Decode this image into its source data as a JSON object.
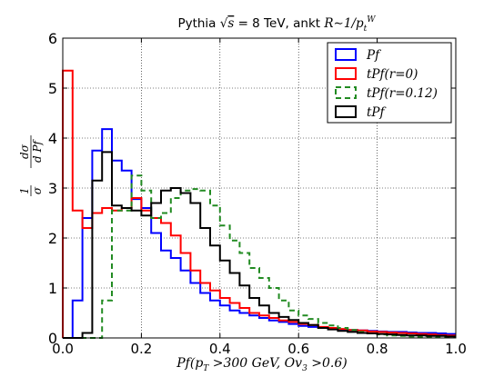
{
  "chart_data": {
    "type": "line",
    "title": "Pythia √s = 8 TeV, ankt R∼1/p_t^W",
    "title_parts": {
      "prefix": "Pythia ",
      "sqrt": "√",
      "s": "s",
      "energy": " = 8 TeV, ankt ",
      "R": "R",
      "approx": "∼1/",
      "p": "p",
      "sub_t": "t",
      "sup_W": "W"
    },
    "xlabel": "Pf(p_T > 300 GeV, Ov_3 > 0.6)",
    "xlabel_parts": {
      "head": "Pf(p",
      "sub_T": "T",
      "mid": " >300 GeV, Ov",
      "sub_3": "3",
      "tail": " >0.6)"
    },
    "ylabel": "1/σ dσ/d Pf",
    "ylabel_parts": {
      "one": "1",
      "sigma": "σ",
      "dsigma": "dσ",
      "dpf": "d Pf"
    },
    "xlim": [
      0.0,
      1.0
    ],
    "ylim": [
      0,
      6
    ],
    "x_ticks": [
      "0.0",
      "0.2",
      "0.4",
      "0.6",
      "0.8",
      "1.0"
    ],
    "y_ticks": [
      "0",
      "1",
      "2",
      "3",
      "4",
      "5",
      "6"
    ],
    "grid": true,
    "legend_position": "top-right",
    "bin_edges": [
      0.0,
      0.025,
      0.05,
      0.075,
      0.1,
      0.125,
      0.15,
      0.175,
      0.2,
      0.225,
      0.25,
      0.275,
      0.3,
      0.325,
      0.35,
      0.375,
      0.4,
      0.425,
      0.45,
      0.475,
      0.5,
      0.525,
      0.55,
      0.575,
      0.6,
      0.625,
      0.65,
      0.675,
      0.7,
      0.725,
      0.75,
      0.775,
      0.8,
      0.825,
      0.85,
      0.875,
      0.9,
      0.925,
      0.95,
      0.975,
      1.0
    ],
    "series": [
      {
        "name": "Pf",
        "color": "#0000ff",
        "dashed": false,
        "values": [
          0.0,
          0.75,
          2.4,
          3.75,
          4.18,
          3.55,
          3.35,
          2.78,
          2.6,
          2.1,
          1.75,
          1.6,
          1.35,
          1.1,
          0.9,
          0.75,
          0.65,
          0.55,
          0.5,
          0.45,
          0.4,
          0.35,
          0.32,
          0.28,
          0.24,
          0.22,
          0.2,
          0.18,
          0.17,
          0.16,
          0.15,
          0.14,
          0.13,
          0.12,
          0.12,
          0.11,
          0.1,
          0.1,
          0.09,
          0.08
        ]
      },
      {
        "name": "tPf(r=0)",
        "color": "#ff0000",
        "dashed": false,
        "values": [
          5.35,
          2.55,
          2.2,
          2.5,
          2.6,
          2.55,
          2.6,
          2.8,
          2.55,
          2.4,
          2.3,
          2.05,
          1.7,
          1.35,
          1.1,
          0.95,
          0.8,
          0.7,
          0.6,
          0.5,
          0.45,
          0.4,
          0.35,
          0.32,
          0.28,
          0.26,
          0.22,
          0.2,
          0.18,
          0.16,
          0.15,
          0.13,
          0.12,
          0.11,
          0.1,
          0.09,
          0.08,
          0.07,
          0.06,
          0.05
        ]
      },
      {
        "name": "tPf(r=0.12)",
        "color": "#228b22",
        "dashed": true,
        "values": [
          0.0,
          0.0,
          0.0,
          0.0,
          0.75,
          2.55,
          2.55,
          3.25,
          2.95,
          2.4,
          2.5,
          2.8,
          2.95,
          2.98,
          2.95,
          2.65,
          2.25,
          1.95,
          1.7,
          1.4,
          1.2,
          1.0,
          0.75,
          0.55,
          0.45,
          0.38,
          0.3,
          0.25,
          0.2,
          0.16,
          0.12,
          0.09,
          0.07,
          0.05,
          0.04,
          0.03,
          0.02,
          0.02,
          0.01,
          0.01
        ]
      },
      {
        "name": "tPf",
        "color": "#000000",
        "dashed": false,
        "values": [
          0.0,
          0.0,
          0.1,
          3.15,
          3.72,
          2.65,
          2.6,
          2.55,
          2.45,
          2.7,
          2.95,
          3.0,
          2.9,
          2.7,
          2.2,
          1.85,
          1.55,
          1.3,
          1.05,
          0.8,
          0.65,
          0.5,
          0.42,
          0.36,
          0.3,
          0.26,
          0.2,
          0.17,
          0.14,
          0.12,
          0.1,
          0.09,
          0.08,
          0.07,
          0.06,
          0.05,
          0.05,
          0.04,
          0.04,
          0.03
        ]
      }
    ]
  }
}
